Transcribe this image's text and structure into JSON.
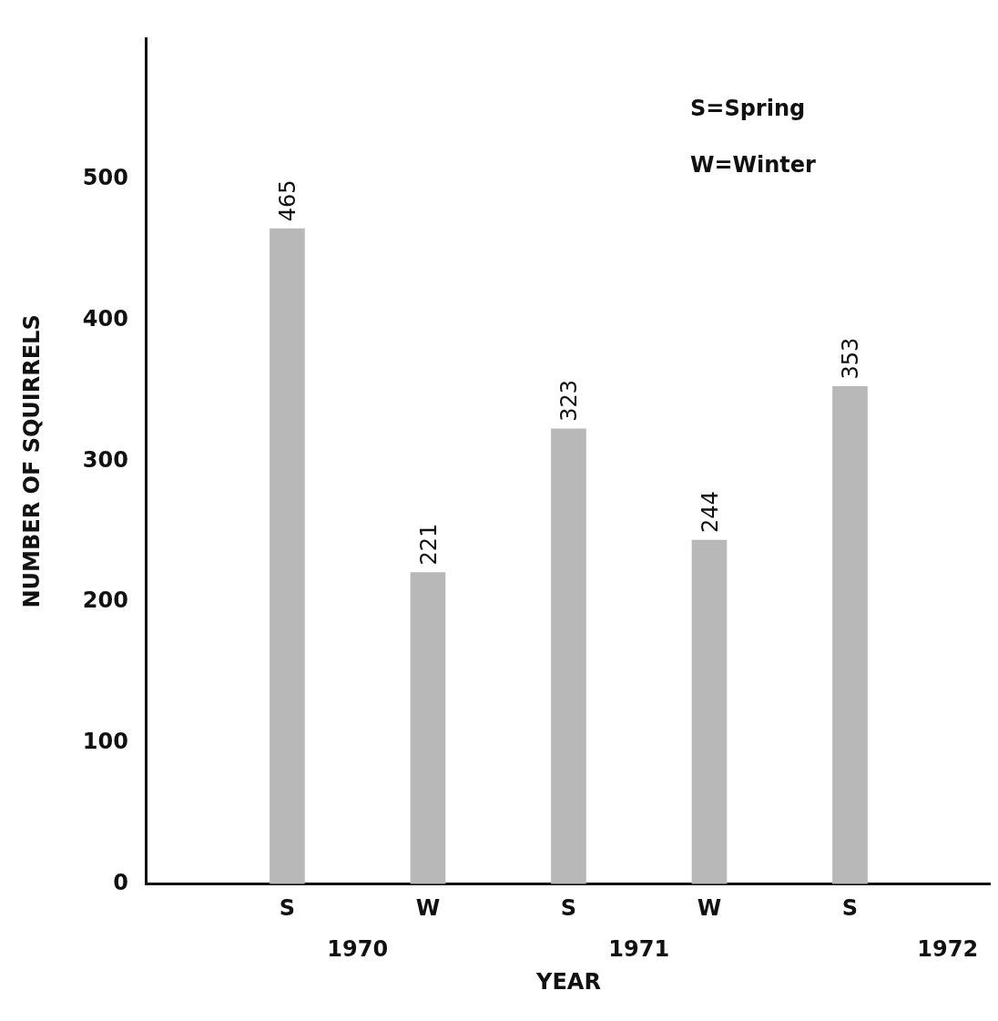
{
  "chart_data": {
    "type": "bar",
    "xlabel": "YEAR",
    "ylabel": "NUMBER OF SQUIRRELS",
    "categories": [
      "S",
      "W",
      "S",
      "W",
      "S"
    ],
    "values": [
      465,
      221,
      323,
      244,
      353
    ],
    "color": "#b8b8b8",
    "ylim": [
      0,
      600
    ],
    "yticks": [
      0,
      100,
      200,
      300,
      400,
      500
    ],
    "grid": false,
    "legend": false,
    "data_labels": true,
    "annotations": [
      "1970",
      "1971",
      "1972",
      "S=Spring",
      "W=Winter"
    ]
  }
}
